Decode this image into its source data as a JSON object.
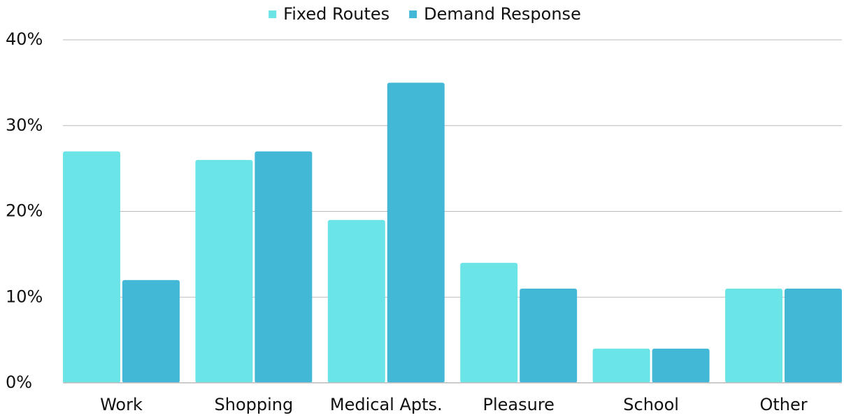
{
  "chart_data": {
    "type": "bar",
    "categories": [
      "Work",
      "Shopping",
      "Medical Apts.",
      "Pleasure",
      "School",
      "Other"
    ],
    "series": [
      {
        "name": "Fixed Routes",
        "color": "#6ae4e7",
        "values": [
          27,
          26,
          19,
          14,
          4,
          11
        ]
      },
      {
        "name": "Demand Response",
        "color": "#42b8d6",
        "values": [
          12,
          27,
          35,
          11,
          4,
          11
        ]
      }
    ],
    "ylim": [
      0,
      40
    ],
    "yticks": [
      {
        "value": 0,
        "label": "0%"
      },
      {
        "value": 10,
        "label": "10%"
      },
      {
        "value": 20,
        "label": "20%"
      },
      {
        "value": 30,
        "label": "30%"
      },
      {
        "value": 40,
        "label": "40%"
      }
    ],
    "grid": true,
    "legend": "top"
  }
}
